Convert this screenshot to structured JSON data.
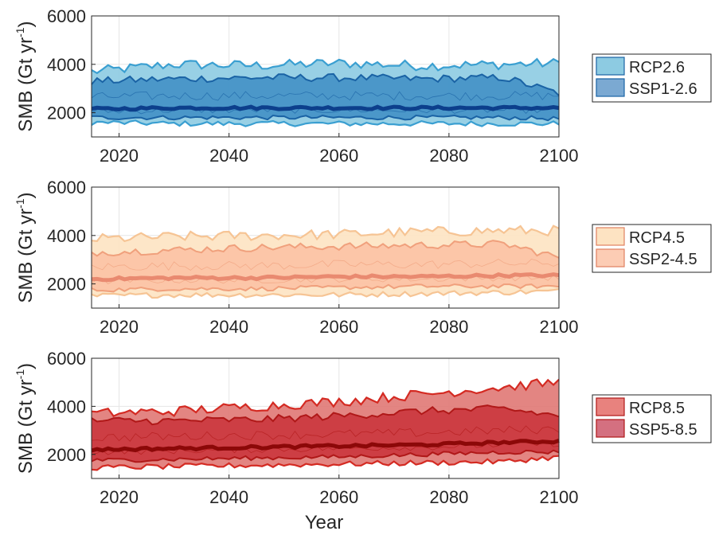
{
  "figure": {
    "xlabel": "Year",
    "ylabel_main": "SMB (Gt yr",
    "ylabel_sup": "-1",
    "ylabel_close": ")"
  },
  "chart_data": [
    {
      "type": "area",
      "xlim": [
        2015,
        2100
      ],
      "ylim": [
        1000,
        6000
      ],
      "x_ticks": [
        "2020",
        "2040",
        "2060",
        "2080",
        "2100"
      ],
      "y_ticks": [
        "2000",
        "4000",
        "6000"
      ],
      "grid": true,
      "legend_position": "right",
      "legend": [
        "RCP2.6",
        "SSP1-2.6"
      ],
      "colors": {
        "outer_fill": "#8dcbe2",
        "inner_fill": "#3d8dc4",
        "outer_edge": "#3a9fd1",
        "inner_edge": "#1a63a5",
        "median": "#0c3f8c",
        "legend_fill_1": "#8dcbe2",
        "legend_fill_2": "#7ba9d2",
        "legend_edge": "#1a63a5"
      },
      "x_knots": [
        2015,
        2030,
        2045,
        2060,
        2075,
        2090,
        2100
      ],
      "series": [
        {
          "name": "RCP2.6",
          "role": "outer_upper",
          "values": [
            3700,
            4000,
            3950,
            4050,
            3950,
            4000,
            4050
          ]
        },
        {
          "name": "RCP2.6",
          "role": "outer_lower",
          "values": [
            1600,
            1550,
            1550,
            1550,
            1550,
            1550,
            1550
          ]
        },
        {
          "name": "SSP1-2.6",
          "role": "inner_upper",
          "values": [
            3300,
            3400,
            3450,
            3450,
            3400,
            3450,
            2800
          ]
        },
        {
          "name": "SSP1-2.6",
          "role": "inner_lower",
          "values": [
            1800,
            1800,
            1800,
            1800,
            1800,
            1800,
            1750
          ]
        },
        {
          "name": "median",
          "role": "median",
          "values": [
            2150,
            2200,
            2200,
            2200,
            2200,
            2200,
            2200
          ]
        }
      ]
    },
    {
      "type": "area",
      "xlim": [
        2015,
        2100
      ],
      "ylim": [
        1000,
        6000
      ],
      "x_ticks": [
        "2020",
        "2040",
        "2060",
        "2080",
        "2100"
      ],
      "y_ticks": [
        "2000",
        "4000",
        "6000"
      ],
      "grid": true,
      "legend_position": "right",
      "legend": [
        "RCP4.5",
        "SSP2-4.5"
      ],
      "colors": {
        "outer_fill": "#fde3c2",
        "inner_fill": "#fcc0a2",
        "outer_edge": "#f6c494",
        "inner_edge": "#f0a07c",
        "median": "#e98a70",
        "legend_fill_1": "#fde3c2",
        "legend_fill_2": "#fcccb4",
        "legend_edge": "#e08060"
      },
      "x_knots": [
        2015,
        2030,
        2045,
        2060,
        2075,
        2090,
        2100
      ],
      "series": [
        {
          "name": "RCP4.5",
          "role": "outer_upper",
          "values": [
            3850,
            3950,
            4000,
            4050,
            4150,
            4200,
            4200
          ]
        },
        {
          "name": "RCP4.5",
          "role": "outer_lower",
          "values": [
            1500,
            1550,
            1550,
            1550,
            1600,
            1650,
            1700
          ]
        },
        {
          "name": "SSP2-4.5",
          "role": "inner_upper",
          "values": [
            3300,
            3400,
            3500,
            3550,
            3600,
            3650,
            3100
          ]
        },
        {
          "name": "SSP2-4.5",
          "role": "inner_lower",
          "values": [
            1750,
            1800,
            1800,
            1850,
            1900,
            1900,
            1900
          ]
        },
        {
          "name": "median",
          "role": "median",
          "values": [
            2200,
            2250,
            2250,
            2300,
            2300,
            2350,
            2350
          ]
        }
      ]
    },
    {
      "type": "area",
      "xlim": [
        2015,
        2100
      ],
      "ylim": [
        1000,
        6000
      ],
      "x_ticks": [
        "2020",
        "2040",
        "2060",
        "2080",
        "2100"
      ],
      "y_ticks": [
        "2000",
        "4000",
        "6000"
      ],
      "grid": true,
      "legend_position": "right",
      "legend": [
        "RCP8.5",
        "SSP5-8.5"
      ],
      "colors": {
        "outer_fill": "#e07874",
        "inner_fill": "#c9313a",
        "outer_edge": "#d42a22",
        "inner_edge": "#b01818",
        "median": "#8c0808",
        "legend_fill_1": "#e8827e",
        "legend_fill_2": "#d47080",
        "legend_edge": "#b01818"
      },
      "x_knots": [
        2015,
        2030,
        2045,
        2060,
        2075,
        2090,
        2100
      ],
      "series": [
        {
          "name": "RCP8.5",
          "role": "outer_upper",
          "values": [
            3700,
            3800,
            4000,
            4200,
            4500,
            4800,
            5000
          ]
        },
        {
          "name": "RCP8.5",
          "role": "outer_lower",
          "values": [
            1450,
            1500,
            1550,
            1600,
            1650,
            1700,
            1900
          ]
        },
        {
          "name": "SSP5-8.5",
          "role": "inner_upper",
          "values": [
            3400,
            3400,
            3450,
            3600,
            3800,
            3900,
            3600
          ]
        },
        {
          "name": "SSP5-8.5",
          "role": "inner_lower",
          "values": [
            1750,
            1800,
            1850,
            1900,
            2000,
            2100,
            2100
          ]
        },
        {
          "name": "median",
          "role": "median",
          "values": [
            2200,
            2250,
            2300,
            2350,
            2400,
            2500,
            2550
          ]
        }
      ]
    }
  ]
}
